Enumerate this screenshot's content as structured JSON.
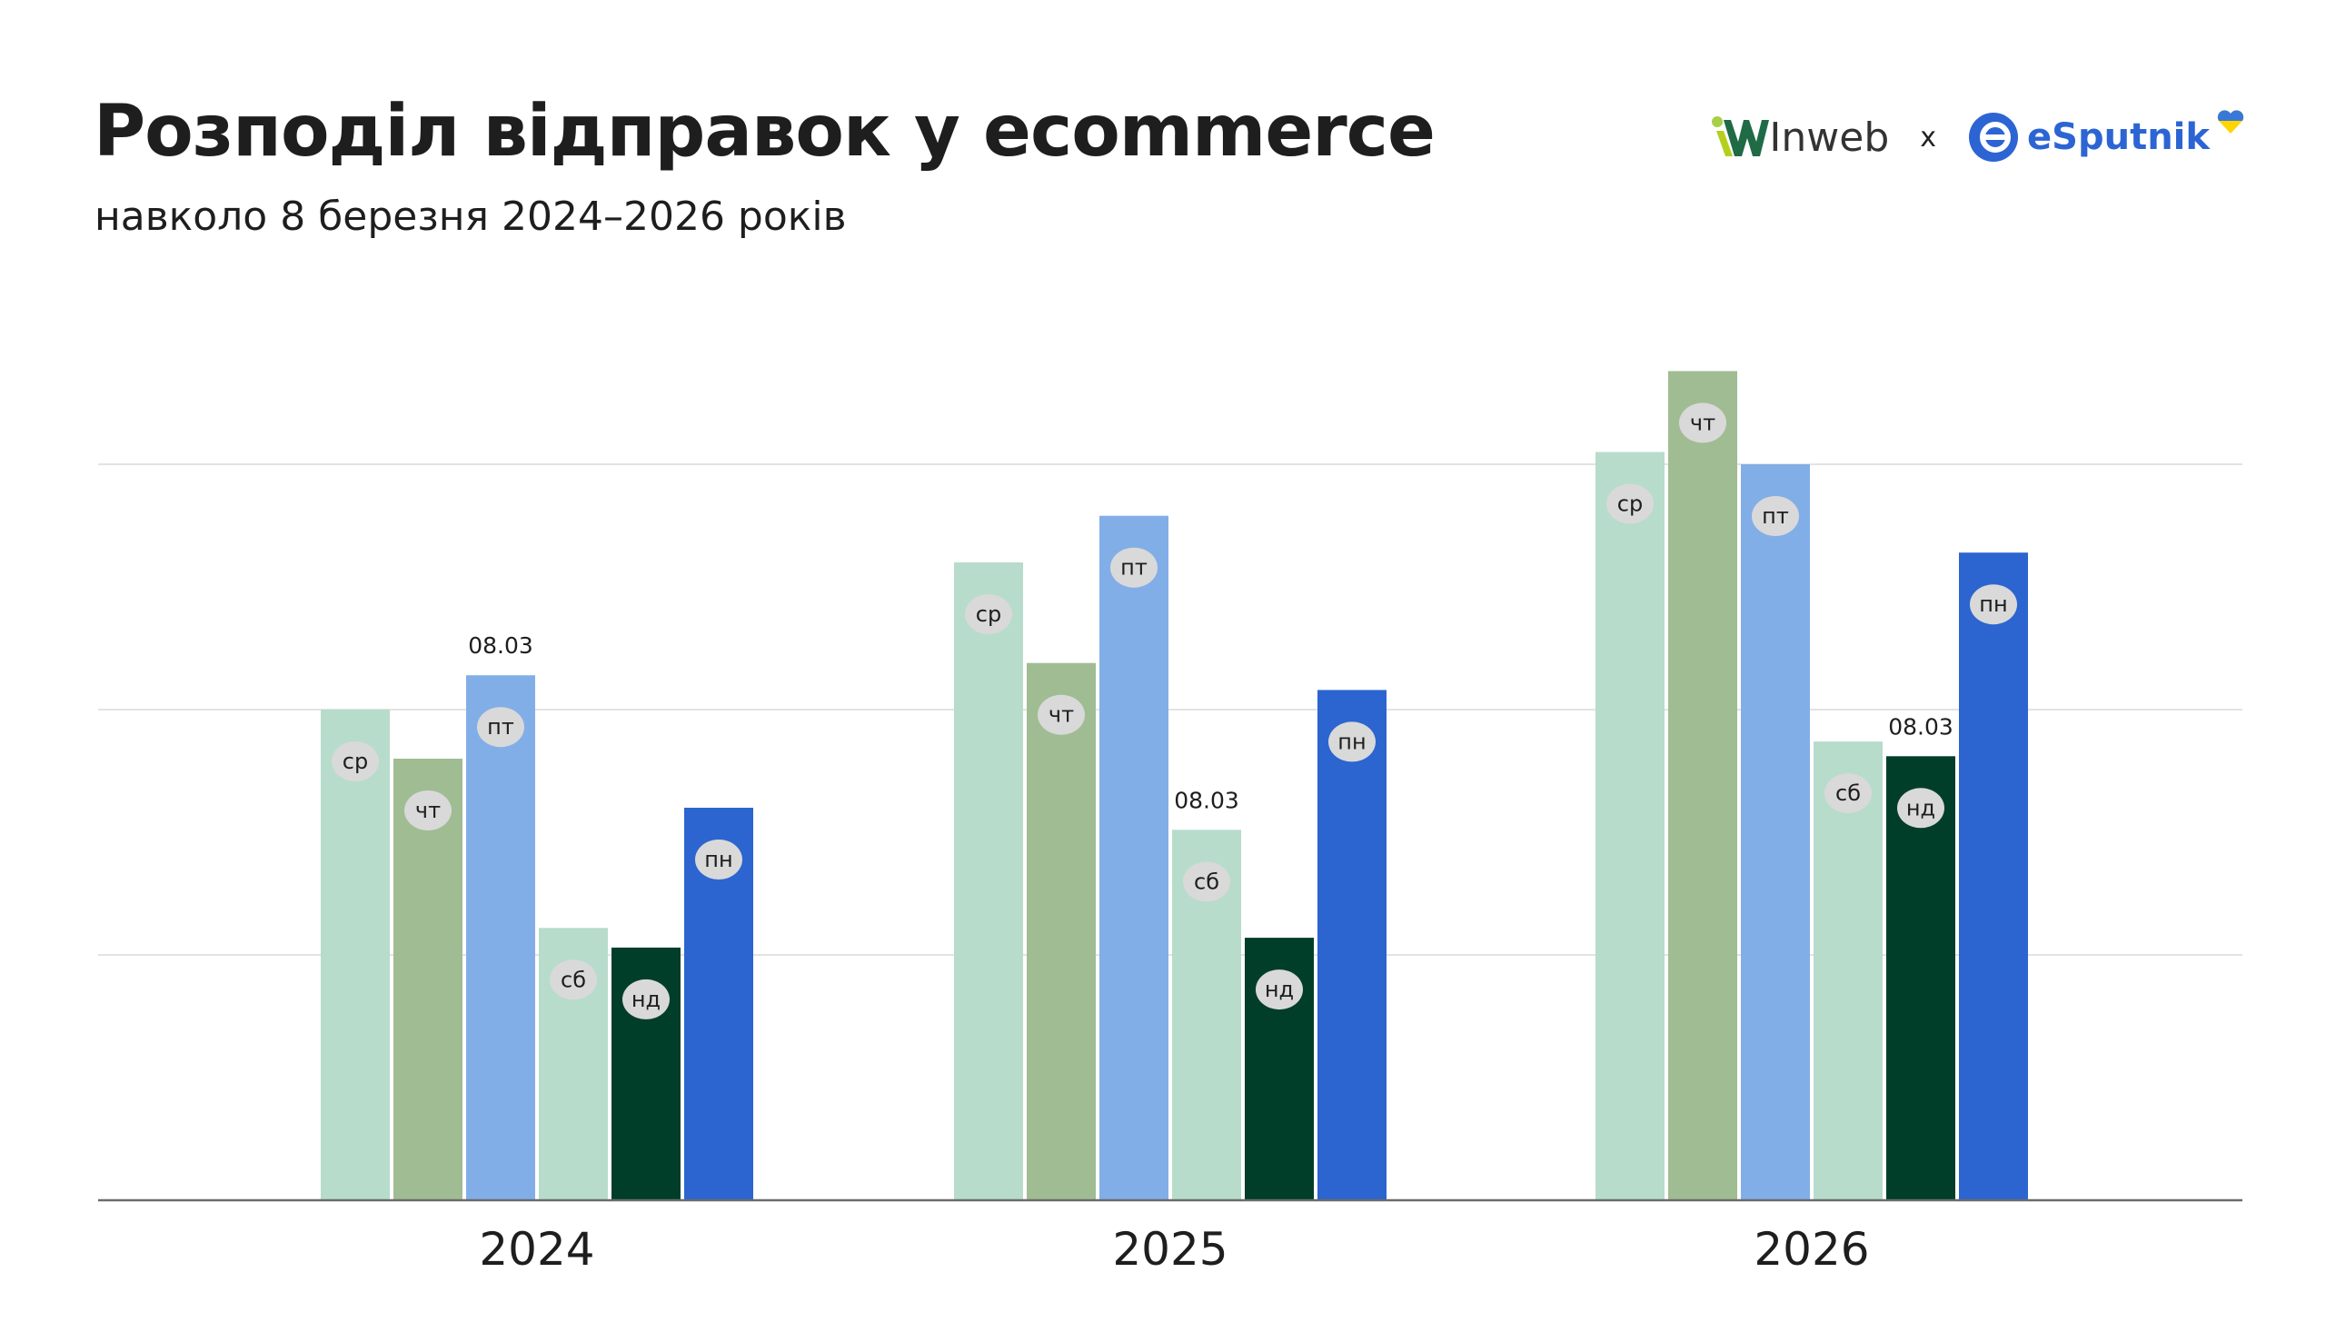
{
  "header": {
    "title": "Розподіл відправок у ecommerce",
    "subtitle": "навколо 8 березня 2024–2026 років",
    "logo_left": "Inweb",
    "logo_separator": "x",
    "logo_right": "eSputnik"
  },
  "chart_data": {
    "type": "bar",
    "title": "Розподіл відправок у ecommerce",
    "subtitle": "навколо 8 березня 2024–2026 років",
    "categories": [
      "2024",
      "2025",
      "2026"
    ],
    "grid": true,
    "y_axis_labels": false,
    "ylim": [
      0,
      3.4
    ],
    "groups": [
      {
        "year": "2024",
        "bars": [
          {
            "day": "ср",
            "value": 2.0,
            "color": "#b7dccb"
          },
          {
            "day": "чт",
            "value": 1.8,
            "color": "#a0bc93"
          },
          {
            "day": "пт",
            "value": 2.14,
            "color": "#82aee8",
            "annotation": "08.03"
          },
          {
            "day": "сб",
            "value": 1.11,
            "color": "#b7dccb"
          },
          {
            "day": "нд",
            "value": 1.03,
            "color": "#003e2a"
          },
          {
            "day": "пн",
            "value": 1.6,
            "color": "#2c65cf"
          }
        ]
      },
      {
        "year": "2025",
        "bars": [
          {
            "day": "ср",
            "value": 2.6,
            "color": "#b7dccb"
          },
          {
            "day": "чт",
            "value": 2.19,
            "color": "#a0bc93"
          },
          {
            "day": "пт",
            "value": 2.79,
            "color": "#82aee8"
          },
          {
            "day": "сб",
            "value": 1.51,
            "color": "#b7dccb",
            "annotation": "08.03"
          },
          {
            "day": "нд",
            "value": 1.07,
            "color": "#003e2a"
          },
          {
            "day": "пн",
            "value": 2.08,
            "color": "#2c65cf"
          }
        ]
      },
      {
        "year": "2026",
        "bars": [
          {
            "day": "ср",
            "value": 3.05,
            "color": "#b7dccb"
          },
          {
            "day": "чт",
            "value": 3.38,
            "color": "#a0bc93"
          },
          {
            "day": "пт",
            "value": 3.0,
            "color": "#82aee8"
          },
          {
            "day": "сб",
            "value": 1.87,
            "color": "#b7dccb"
          },
          {
            "day": "нд",
            "value": 1.81,
            "color": "#003e2a",
            "annotation": "08.03"
          },
          {
            "day": "пн",
            "value": 2.64,
            "color": "#2c65cf"
          }
        ]
      }
    ]
  }
}
